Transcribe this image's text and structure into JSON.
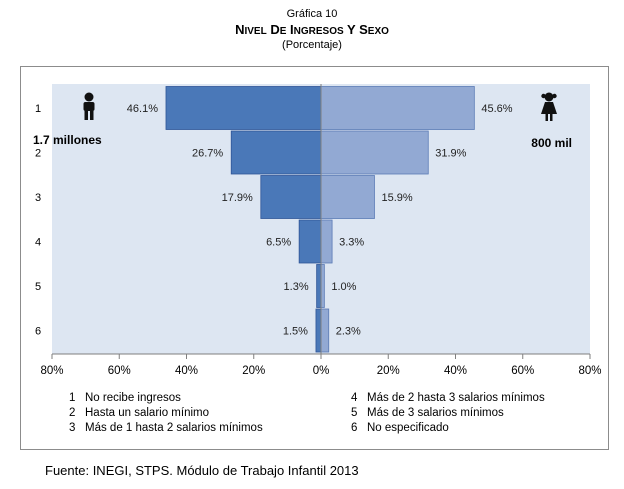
{
  "header": {
    "figure_label": "Gráfica 10",
    "title": "Nivel de ingresos y sexo",
    "subtitle": "(Porcentaje)"
  },
  "chart_data": {
    "type": "bar",
    "orientation": "horizontal",
    "layout": "population-pyramid",
    "categories": [
      "1",
      "2",
      "3",
      "4",
      "5",
      "6"
    ],
    "series": [
      {
        "name": "",
        "side": "left",
        "color": "#4a78b8",
        "values": [
          46.1,
          26.7,
          17.9,
          6.5,
          1.3,
          1.5
        ]
      },
      {
        "name": "",
        "side": "right",
        "color": "#92a9d3",
        "values": [
          45.6,
          31.9,
          15.9,
          3.3,
          1.0,
          2.3
        ]
      }
    ],
    "data_labels": {
      "left": [
        "46.1%",
        "26.7%",
        "17.9%",
        "6.5%",
        "1.3%",
        "1.5%"
      ],
      "right": [
        "45.6%",
        "31.9%",
        "15.9%",
        "3.3%",
        "1.0%",
        "2.3%"
      ]
    },
    "x_ticks": [
      "80%",
      "60%",
      "40%",
      "20%",
      "0%",
      "20%",
      "40%",
      "60%",
      "80%"
    ],
    "xlim": [
      -80,
      80
    ],
    "annotations": {
      "left_total": "1.7 millones",
      "right_total": "800 mil"
    },
    "icons": {
      "left": "boy-icon",
      "right": "girl-icon"
    },
    "plot_background": "#dde6f2",
    "grid": false
  },
  "legend": {
    "items": [
      {
        "num": "1",
        "label": "No recibe ingresos"
      },
      {
        "num": "2",
        "label": "Hasta un salario mínimo"
      },
      {
        "num": "3",
        "label": "Más de 1 hasta 2 salarios mínimos"
      },
      {
        "num": "4",
        "label": "Más de 2 hasta 3 salarios mínimos"
      },
      {
        "num": "5",
        "label": "Más de 3 salarios mínimos"
      },
      {
        "num": "6",
        "label": "No especificado"
      }
    ]
  },
  "source": "Fuente: INEGI, STPS. Módulo de Trabajo Infantil 2013"
}
